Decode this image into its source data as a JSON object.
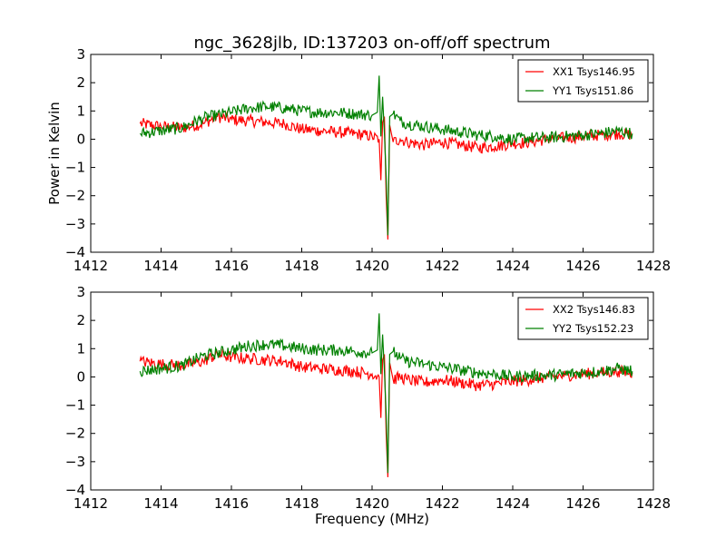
{
  "figure": {
    "title": "ngc_3628jlb, ID:137203 on-off/off spectrum"
  },
  "chart_data": [
    {
      "type": "line",
      "ylabel": "Power in Kelvin",
      "xlabel": "",
      "xlim": [
        1412,
        1428
      ],
      "ylim": [
        -4,
        3
      ],
      "xticks": [
        "1412",
        "1414",
        "1416",
        "1418",
        "1420",
        "1422",
        "1424",
        "1426",
        "1428"
      ],
      "yticks": [
        "−4",
        "−3",
        "−2",
        "−1",
        "0",
        "1",
        "2",
        "3"
      ],
      "legend_position": "top-right",
      "series": [
        {
          "name": "XX1 Tsys146.95",
          "color": "#ff0000",
          "x": [
            1413.4,
            1414.0,
            1414.6,
            1415.2,
            1415.6,
            1416.0,
            1416.5,
            1417.0,
            1417.5,
            1418.0,
            1418.5,
            1419.0,
            1419.5,
            1420.0,
            1420.2,
            1420.25,
            1420.3,
            1420.35,
            1420.4,
            1420.45,
            1420.5,
            1420.6,
            1420.8,
            1421.0,
            1421.5,
            1422.0,
            1422.5,
            1423.0,
            1423.5,
            1424.0,
            1424.5,
            1425.0,
            1425.5,
            1426.0,
            1426.5,
            1427.0,
            1427.4
          ],
          "y": [
            0.55,
            0.45,
            0.4,
            0.55,
            0.8,
            0.7,
            0.65,
            0.6,
            0.55,
            0.35,
            0.3,
            0.25,
            0.2,
            0.1,
            0.0,
            -1.45,
            0.6,
            0.8,
            -2.0,
            -3.55,
            0.5,
            -0.1,
            0.0,
            -0.1,
            -0.2,
            -0.1,
            -0.2,
            -0.3,
            -0.25,
            -0.15,
            -0.1,
            0.0,
            0.05,
            0.1,
            0.15,
            0.2,
            0.15
          ]
        },
        {
          "name": "YY1 Tsys151.86",
          "color": "#008000",
          "x": [
            1413.4,
            1414.0,
            1414.6,
            1415.2,
            1415.6,
            1416.0,
            1416.5,
            1417.0,
            1417.5,
            1418.0,
            1418.5,
            1419.0,
            1419.5,
            1420.0,
            1420.15,
            1420.2,
            1420.25,
            1420.3,
            1420.35,
            1420.4,
            1420.45,
            1420.5,
            1420.6,
            1420.8,
            1421.0,
            1421.5,
            1422.0,
            1422.5,
            1423.0,
            1423.5,
            1424.0,
            1424.5,
            1425.0,
            1425.5,
            1426.0,
            1426.5,
            1427.0,
            1427.4
          ],
          "y": [
            0.2,
            0.3,
            0.4,
            0.75,
            0.85,
            0.95,
            1.1,
            1.15,
            1.1,
            1.0,
            0.95,
            0.95,
            0.9,
            0.85,
            0.95,
            2.25,
            0.1,
            1.5,
            0.2,
            -1.3,
            -3.4,
            0.8,
            0.9,
            0.65,
            0.55,
            0.45,
            0.35,
            0.25,
            0.15,
            0.1,
            0.0,
            0.05,
            0.05,
            0.1,
            0.15,
            0.2,
            0.3,
            0.2
          ]
        }
      ]
    },
    {
      "type": "line",
      "ylabel": "",
      "xlabel": "Frequency (MHz)",
      "xlim": [
        1412,
        1428
      ],
      "ylim": [
        -4,
        3
      ],
      "xticks": [
        "1412",
        "1414",
        "1416",
        "1418",
        "1420",
        "1422",
        "1424",
        "1426",
        "1428"
      ],
      "yticks": [
        "−4",
        "−3",
        "−2",
        "−1",
        "0",
        "1",
        "2",
        "3"
      ],
      "legend_position": "top-right",
      "series": [
        {
          "name": "XX2 Tsys146.83",
          "color": "#ff0000",
          "x": [
            1413.4,
            1414.0,
            1414.6,
            1415.2,
            1415.6,
            1416.0,
            1416.5,
            1417.0,
            1417.5,
            1418.0,
            1418.5,
            1419.0,
            1419.5,
            1420.0,
            1420.2,
            1420.25,
            1420.3,
            1420.35,
            1420.4,
            1420.45,
            1420.5,
            1420.6,
            1420.8,
            1421.0,
            1421.5,
            1422.0,
            1422.5,
            1423.0,
            1423.5,
            1424.0,
            1424.5,
            1425.0,
            1425.5,
            1426.0,
            1426.5,
            1427.0,
            1427.4
          ],
          "y": [
            0.55,
            0.45,
            0.4,
            0.55,
            0.8,
            0.7,
            0.65,
            0.6,
            0.55,
            0.35,
            0.3,
            0.25,
            0.2,
            0.1,
            0.0,
            -1.45,
            0.6,
            0.8,
            -2.0,
            -3.55,
            0.5,
            -0.1,
            0.0,
            -0.1,
            -0.2,
            -0.1,
            -0.2,
            -0.3,
            -0.25,
            -0.15,
            -0.1,
            0.0,
            0.05,
            0.1,
            0.15,
            0.2,
            0.15
          ]
        },
        {
          "name": "YY2 Tsys152.23",
          "color": "#008000",
          "x": [
            1413.4,
            1414.0,
            1414.6,
            1415.2,
            1415.6,
            1416.0,
            1416.5,
            1417.0,
            1417.5,
            1418.0,
            1418.5,
            1419.0,
            1419.5,
            1420.0,
            1420.15,
            1420.2,
            1420.25,
            1420.3,
            1420.35,
            1420.4,
            1420.45,
            1420.5,
            1420.6,
            1420.8,
            1421.0,
            1421.5,
            1422.0,
            1422.5,
            1423.0,
            1423.5,
            1424.0,
            1424.5,
            1425.0,
            1425.5,
            1426.0,
            1426.5,
            1427.0,
            1427.4
          ],
          "y": [
            0.2,
            0.3,
            0.4,
            0.75,
            0.85,
            0.95,
            1.1,
            1.15,
            1.1,
            1.0,
            0.95,
            0.95,
            0.9,
            0.85,
            0.95,
            2.25,
            0.1,
            1.5,
            0.2,
            -1.3,
            -3.4,
            0.8,
            0.9,
            0.65,
            0.55,
            0.45,
            0.35,
            0.25,
            0.15,
            0.1,
            0.0,
            0.05,
            0.05,
            0.1,
            0.15,
            0.2,
            0.3,
            0.2
          ]
        }
      ]
    }
  ]
}
